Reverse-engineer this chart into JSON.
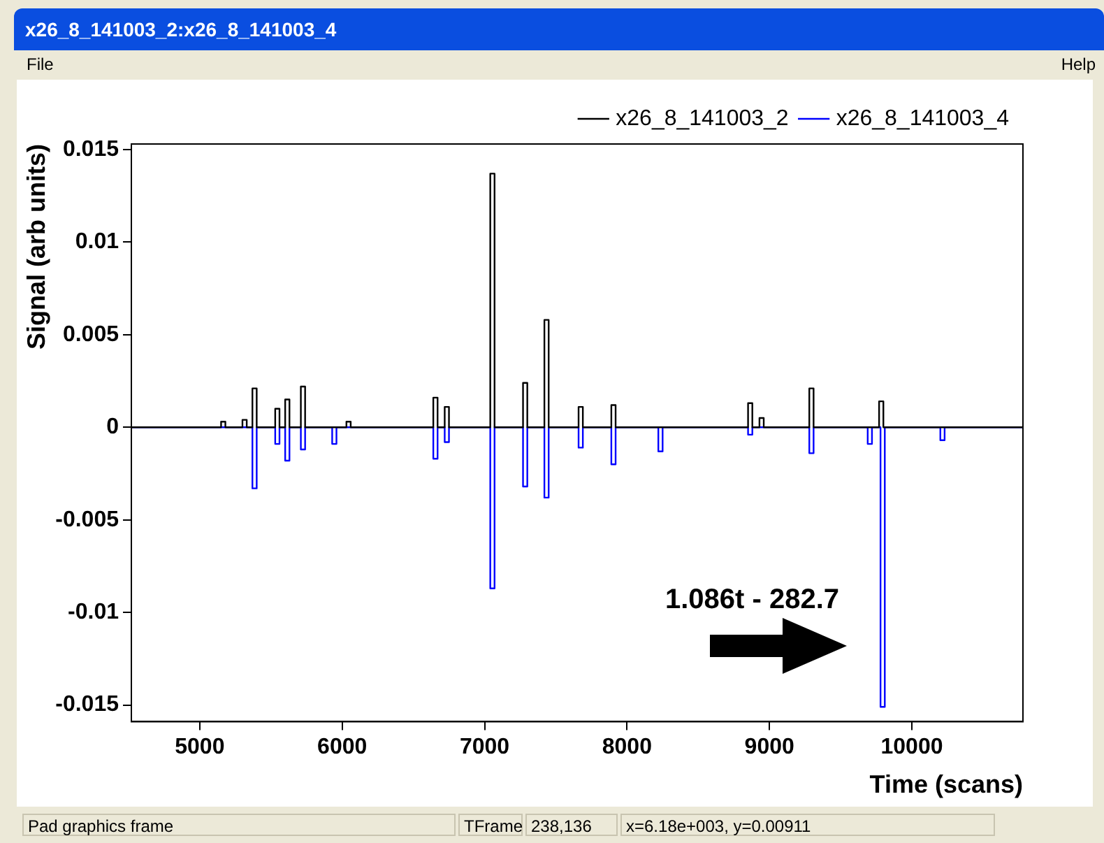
{
  "chart_data": {
    "type": "step",
    "title": "x26_8_141003_2:x26_8_141003_4",
    "xlabel": "Time (scans)",
    "ylabel": "Signal (arb units)",
    "xlim": [
      4520,
      10780
    ],
    "xticks": [
      5000,
      6000,
      7000,
      8000,
      9000,
      10000
    ],
    "ylim": [
      -0.0159,
      0.0153
    ],
    "yticks": [
      -0.015,
      -0.01,
      -0.005,
      0,
      0.005,
      0.01,
      0.015
    ],
    "grid": false,
    "legend": "top right",
    "marker": "none",
    "line_style": "solid",
    "series": [
      {
        "name": "x26_8_141003_2",
        "color": "#000000",
        "x": [
          4520,
          5120,
          5150,
          5180,
          5270,
          5300,
          5330,
          5340,
          5370,
          5400,
          5500,
          5530,
          5560,
          5570,
          5600,
          5630,
          5680,
          5710,
          5740,
          6000,
          6030,
          6060,
          6610,
          6640,
          6670,
          6690,
          6720,
          6750,
          7010,
          7040,
          7070,
          7240,
          7270,
          7300,
          7390,
          7420,
          7450,
          7630,
          7660,
          7690,
          7860,
          7890,
          7920,
          8820,
          8850,
          8880,
          8900,
          8930,
          8960,
          9250,
          9280,
          9310,
          9740,
          9770,
          9800,
          10780
        ],
        "values": [
          0,
          0,
          0.0003,
          0,
          0,
          0.0004,
          0,
          0,
          0.0021,
          0,
          0,
          0.001,
          0,
          0,
          0.0015,
          0,
          0,
          0.0022,
          0,
          0,
          0.0003,
          0,
          0,
          0.0016,
          0,
          0,
          0.0011,
          0,
          0,
          0.0137,
          0,
          0,
          0.0024,
          0,
          0,
          0.0058,
          0,
          0,
          0.0011,
          0,
          0,
          0.0012,
          0,
          0,
          0.0013,
          0,
          0,
          0.0005,
          0,
          0,
          0.0021,
          0,
          0,
          0.0014,
          0,
          0
        ]
      },
      {
        "name": "x26_8_141003_4",
        "color": "#0000ff",
        "x": [
          4520,
          5340,
          5370,
          5400,
          5500,
          5530,
          5560,
          5570,
          5600,
          5630,
          5680,
          5710,
          5740,
          5900,
          5930,
          5960,
          6610,
          6640,
          6670,
          6690,
          6720,
          6750,
          7010,
          7040,
          7070,
          7240,
          7270,
          7300,
          7390,
          7420,
          7450,
          7630,
          7660,
          7690,
          7860,
          7890,
          7920,
          8190,
          8220,
          8250,
          8820,
          8850,
          8880,
          9250,
          9280,
          9310,
          9660,
          9690,
          9720,
          9750,
          9780,
          9810,
          10170,
          10200,
          10230,
          10780
        ],
        "values": [
          0,
          0,
          -0.0033,
          0,
          0,
          -0.0009,
          0,
          0,
          -0.0018,
          0,
          0,
          -0.0012,
          0,
          0,
          -0.0009,
          0,
          0,
          -0.0017,
          0,
          0,
          -0.0008,
          0,
          0,
          -0.0087,
          0,
          0,
          -0.0032,
          0,
          0,
          -0.0038,
          0,
          0,
          -0.0011,
          0,
          0,
          -0.002,
          0,
          0,
          -0.0013,
          0,
          0,
          -0.0004,
          0,
          0,
          -0.0014,
          0,
          0,
          -0.0009,
          0,
          0,
          -0.0151,
          0,
          0,
          -0.0007,
          0,
          0
        ]
      }
    ],
    "annotations": [
      "1.086t - 282.7",
      "File",
      "Help",
      "Pad graphics frame",
      "TFrame",
      "238,136",
      "x=6.18e+003, y=0.00911"
    ]
  }
}
